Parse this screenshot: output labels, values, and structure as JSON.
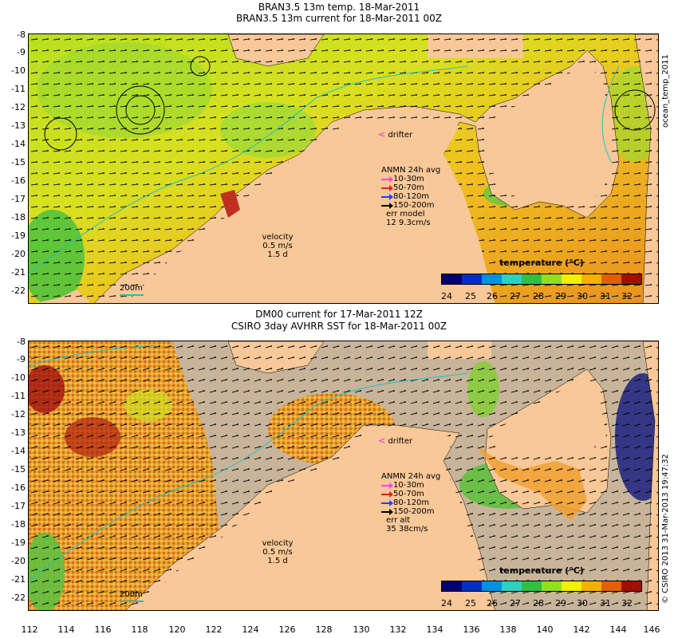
{
  "top_panel": {
    "title_line1": "BRAN3.5 13m temp. 18-Mar-2011",
    "title_line2": "BRAN3.5 13m current for 18-Mar-2011 00Z",
    "side_label": "ocean_temp_2011",
    "drifter_label": "drifter",
    "legend": {
      "title": "ANMN 24h avg",
      "items": [
        {
          "label": "10-30m",
          "color": "#ff40ff"
        },
        {
          "label": "50-70m",
          "color": "#e02020"
        },
        {
          "label": "80-120m",
          "color": "#2040ff"
        },
        {
          "label": "150-200m",
          "color": "#000000"
        }
      ],
      "err_label": "err model",
      "err_value": "12 9.3cm/s"
    },
    "velocity": {
      "label": "velocity",
      "value": "0.5 m/s",
      "time": "1.5 d"
    },
    "scale_label": "200m",
    "colorbar_title": "temperature (°C)"
  },
  "bottom_panel": {
    "title_line1": "DM00 current for 17-Mar-2011 12Z",
    "title_line2": "CSIRO 3day AVHRR SST for 18-Mar-2011 00Z",
    "side_label": "© CSIRO 2013  31-Mar-2013 19:47:32",
    "drifter_label": "drifter",
    "legend": {
      "title": "ANMN 24h avg",
      "items": [
        {
          "label": "10-30m",
          "color": "#ff40ff"
        },
        {
          "label": "50-70m",
          "color": "#e02020"
        },
        {
          "label": "80-120m",
          "color": "#2040ff"
        },
        {
          "label": "150-200m",
          "color": "#000000"
        }
      ],
      "err_label": "err alt",
      "err_value": "35 38cm/s"
    },
    "velocity": {
      "label": "velocity",
      "value": "0.5 m/s",
      "time": "1.5 d"
    },
    "scale_label": "200m",
    "colorbar_title": "temperature (°C)"
  },
  "y_ticks": [
    "-8",
    "-9",
    "-10",
    "-11",
    "-12",
    "-13",
    "-14",
    "-15",
    "-16",
    "-17",
    "-18",
    "-19",
    "-20",
    "-21",
    "-22"
  ],
  "x_ticks": [
    "112",
    "114",
    "116",
    "118",
    "120",
    "122",
    "124",
    "126",
    "128",
    "130",
    "132",
    "134",
    "136",
    "138",
    "140",
    "142",
    "144",
    "146"
  ],
  "colorbar_ticks": [
    "24",
    "25",
    "26",
    "27",
    "28",
    "29",
    "30",
    "31",
    "32"
  ],
  "colorbar_colors": [
    "#000070",
    "#0030c0",
    "#0090e0",
    "#30d0c0",
    "#30c040",
    "#90e020",
    "#f0f000",
    "#f8b000",
    "#e06000",
    "#a01000"
  ],
  "colors": {
    "land": "#f8c898",
    "no_data": "#c8b49a",
    "ocean_warm": "#e8a020",
    "ocean_mid": "#d8e020",
    "ocean_cool": "#60d040",
    "isobath": "#20c0c0"
  }
}
